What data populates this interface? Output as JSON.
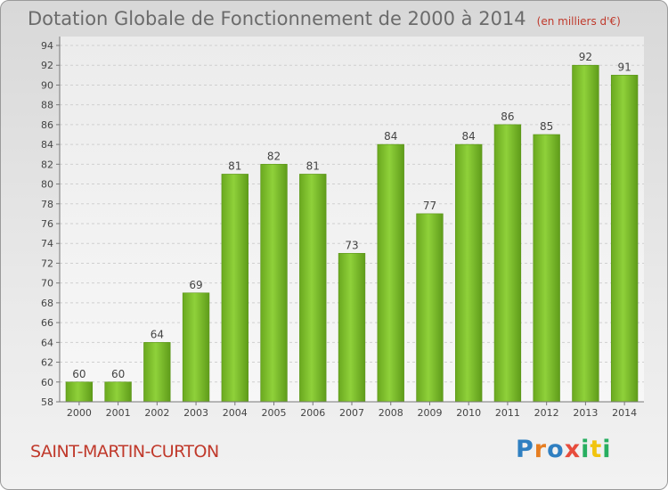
{
  "chart_data": {
    "type": "bar",
    "title": "Dotation Globale de Fonctionnement de 2000 à 2014",
    "subtitle": "(en milliers d'€)",
    "categories": [
      "2000",
      "2001",
      "2002",
      "2003",
      "2004",
      "2005",
      "2006",
      "2007",
      "2008",
      "2009",
      "2010",
      "2011",
      "2012",
      "2013",
      "2014"
    ],
    "values": [
      60,
      60,
      64,
      69,
      81,
      82,
      81,
      73,
      84,
      77,
      84,
      86,
      85,
      92,
      91
    ],
    "ylim": [
      58,
      94
    ],
    "yticks": [
      58,
      60,
      62,
      64,
      66,
      68,
      70,
      72,
      74,
      76,
      78,
      80,
      82,
      84,
      86,
      88,
      90,
      92,
      94
    ],
    "grid": true,
    "bar_color": "#7cc02a",
    "xlabel": "",
    "ylabel": ""
  },
  "location": "SAINT-MARTIN-CURTON",
  "brand": {
    "p": "P",
    "r": "r",
    "o": "o",
    "x": "x",
    "i": "i",
    "t": "t",
    "i2": "i"
  }
}
